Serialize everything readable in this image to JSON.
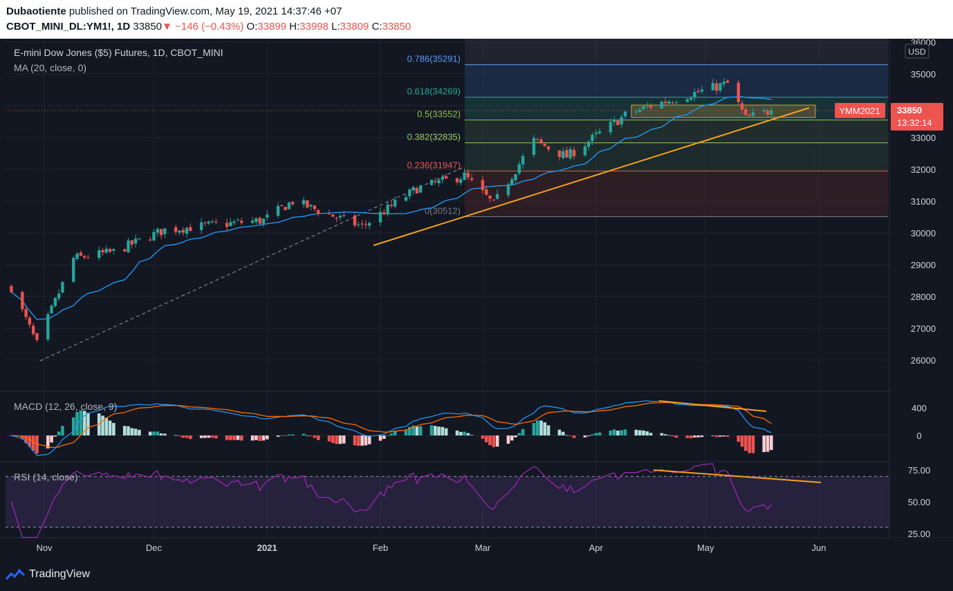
{
  "header": {
    "author": "Dubaotiente",
    "published": "published on TradingView.com, May 19, 2021 14:37:46 +07",
    "symbol": "CBOT_MINI_DL:YM1!, 1D",
    "last": "33850",
    "change_arrow": "▼",
    "change": "−146 (−0.43%)",
    "o_label": "O:",
    "o_val": "33899",
    "h_label": "H:",
    "h_val": "33998",
    "l_label": "L:",
    "l_val": "33809",
    "c_label": "C:",
    "c_val": "33850"
  },
  "legend": {
    "title": "E-mini Dow Jones ($5) Futures, 1D, CBOT_MINI",
    "ma": "MA (20, close, 0)",
    "macd": "MACD (12, 26, close, 9)",
    "rsi": "RSI (14, close)"
  },
  "price_axis": {
    "unit": "USD",
    "ticks": [
      "36000",
      "35000",
      "34000",
      "33000",
      "32000",
      "31000",
      "30000",
      "29000",
      "28000",
      "27000",
      "26000"
    ],
    "last_label": "33850",
    "countdown": "13:32:14",
    "ticker_tag": "YMM2021"
  },
  "macd_axis": {
    "ticks": [
      "400",
      "0"
    ]
  },
  "rsi_axis": {
    "ticks": [
      "75.00",
      "50.00",
      "25.00"
    ]
  },
  "time_axis": {
    "labels": [
      {
        "text": "Nov",
        "bold": false
      },
      {
        "text": "Dec",
        "bold": false
      },
      {
        "text": "2021",
        "bold": true
      },
      {
        "text": "Feb",
        "bold": false
      },
      {
        "text": "Mar",
        "bold": false
      },
      {
        "text": "Apr",
        "bold": false
      },
      {
        "text": "May",
        "bold": false
      },
      {
        "text": "Jun",
        "bold": false
      }
    ]
  },
  "colors": {
    "up": "#26a69a",
    "down": "#ef5350",
    "ma": "#2196f3",
    "macd_line": "#2196f3",
    "signal_line": "#ff6d00",
    "rsi": "#9c27b0",
    "trend": "#f7a21b",
    "grid": "#1f2433"
  },
  "chart_data": [
    {
      "type": "candlestick",
      "title": "E-mini Dow Jones ($5) Futures, 1D, CBOT_MINI",
      "ylim": [
        25000,
        36200
      ],
      "fibonacci": [
        {
          "level": "0.786",
          "price": 35291,
          "label": "0.786(35291)",
          "color": "#5b9cf6"
        },
        {
          "level": "0.618",
          "price": 34269,
          "label": "0.618(34269)",
          "color": "#26a69a"
        },
        {
          "level": "0.5",
          "price": 33552,
          "label": "0.5(33552)",
          "color": "#8bc34a"
        },
        {
          "level": "0.382",
          "price": 32835,
          "label": "0.382(32835)",
          "color": "#9ccc65"
        },
        {
          "level": "0.236",
          "price": 31947,
          "label": "0.236(31947)",
          "color": "#ef5350"
        },
        {
          "level": "0",
          "price": 30512,
          "label": "0(30512)",
          "color": "#787b86"
        }
      ],
      "anchors": [
        {
          "date": "2020-10-23",
          "close": 28300
        },
        {
          "date": "2020-10-30",
          "close": 26500
        },
        {
          "date": "2020-11-09",
          "close": 29200
        },
        {
          "date": "2020-11-20",
          "close": 29400
        },
        {
          "date": "2020-12-04",
          "close": 30100
        },
        {
          "date": "2020-12-31",
          "close": 30400
        },
        {
          "date": "2021-01-08",
          "close": 31000
        },
        {
          "date": "2021-01-27",
          "close": 30200
        },
        {
          "date": "2021-02-11",
          "close": 31400
        },
        {
          "date": "2021-02-24",
          "close": 31800
        },
        {
          "date": "2021-03-04",
          "close": 30900
        },
        {
          "date": "2021-03-15",
          "close": 32900
        },
        {
          "date": "2021-03-24",
          "close": 32400
        },
        {
          "date": "2021-04-09",
          "close": 33700
        },
        {
          "date": "2021-04-16",
          "close": 34000
        },
        {
          "date": "2021-05-07",
          "close": 34700
        },
        {
          "date": "2021-05-12",
          "close": 33600
        },
        {
          "date": "2021-05-19",
          "close": 33850
        }
      ],
      "last_close": 33850,
      "ma_period": 20
    },
    {
      "type": "line",
      "title": "MACD (12, 26, close, 9)",
      "ylim": [
        -400,
        600
      ],
      "series": [
        {
          "name": "MACD"
        },
        {
          "name": "Signal"
        },
        {
          "name": "Histogram"
        }
      ]
    },
    {
      "type": "line",
      "title": "RSI (14, close)",
      "ylim": [
        20,
        80
      ],
      "bands": [
        70,
        30
      ]
    }
  ]
}
